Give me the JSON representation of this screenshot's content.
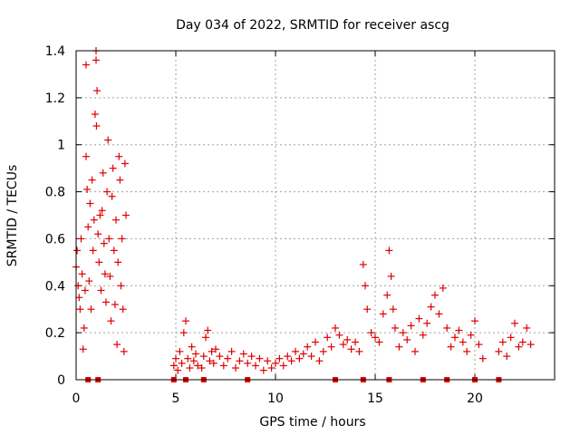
{
  "chart_data": {
    "type": "scatter",
    "title": "Day 034 of 2022, SRMTID for receiver ascg",
    "xlabel": "GPS time / hours",
    "ylabel": "SRMTID / TECUs",
    "xlim": [
      0,
      24
    ],
    "ylim": [
      0,
      1.4
    ],
    "xticks": [
      0,
      5,
      10,
      15,
      20
    ],
    "xtick_labels": [
      "0",
      "5",
      "10",
      "15",
      "20"
    ],
    "yticks": [
      0,
      0.2,
      0.4,
      0.6,
      0.8,
      1.0,
      1.2,
      1.4
    ],
    "ytick_labels": [
      "0",
      "0.2",
      "0.4",
      "0.6",
      "0.8",
      "1",
      "1.2",
      "1.4"
    ],
    "grid": true,
    "marker": "plus",
    "color": "#e00000",
    "series": [
      {
        "name": "SRMTID",
        "points": [
          [
            0.0,
            0.48
          ],
          [
            0.05,
            0.55
          ],
          [
            0.1,
            0.4
          ],
          [
            0.15,
            0.35
          ],
          [
            0.2,
            0.3
          ],
          [
            0.25,
            0.6
          ],
          [
            0.3,
            0.45
          ],
          [
            0.35,
            0.13
          ],
          [
            0.4,
            0.22
          ],
          [
            0.45,
            0.38
          ],
          [
            0.5,
            0.95
          ],
          [
            0.5,
            1.34
          ],
          [
            0.55,
            0.81
          ],
          [
            0.6,
            0.65
          ],
          [
            0.65,
            0.42
          ],
          [
            0.7,
            0.75
          ],
          [
            0.75,
            0.3
          ],
          [
            0.8,
            0.85
          ],
          [
            0.85,
            0.55
          ],
          [
            0.9,
            0.68
          ],
          [
            0.95,
            1.13
          ],
          [
            1.0,
            1.4
          ],
          [
            1.0,
            1.36
          ],
          [
            1.02,
            1.08
          ],
          [
            1.05,
            1.23
          ],
          [
            1.1,
            0.62
          ],
          [
            1.15,
            0.5
          ],
          [
            1.2,
            0.7
          ],
          [
            1.25,
            0.38
          ],
          [
            1.3,
            0.72
          ],
          [
            1.35,
            0.88
          ],
          [
            1.4,
            0.58
          ],
          [
            1.45,
            0.45
          ],
          [
            1.5,
            0.33
          ],
          [
            1.55,
            0.8
          ],
          [
            1.6,
            1.02
          ],
          [
            1.65,
            0.6
          ],
          [
            1.7,
            0.44
          ],
          [
            1.75,
            0.25
          ],
          [
            1.8,
            0.78
          ],
          [
            1.85,
            0.9
          ],
          [
            1.9,
            0.55
          ],
          [
            1.95,
            0.32
          ],
          [
            2.0,
            0.68
          ],
          [
            2.05,
            0.15
          ],
          [
            2.1,
            0.5
          ],
          [
            2.15,
            0.95
          ],
          [
            2.2,
            0.85
          ],
          [
            2.25,
            0.4
          ],
          [
            2.3,
            0.6
          ],
          [
            2.35,
            0.3
          ],
          [
            2.4,
            0.12
          ],
          [
            2.45,
            0.92
          ],
          [
            2.5,
            0.7
          ],
          [
            4.9,
            0.06
          ],
          [
            5.0,
            0.09
          ],
          [
            5.1,
            0.04
          ],
          [
            5.2,
            0.12
          ],
          [
            5.3,
            0.07
          ],
          [
            5.4,
            0.2
          ],
          [
            5.5,
            0.25
          ],
          [
            5.6,
            0.09
          ],
          [
            5.7,
            0.05
          ],
          [
            5.8,
            0.14
          ],
          [
            5.9,
            0.08
          ],
          [
            6.0,
            0.11
          ],
          [
            6.1,
            0.06
          ],
          [
            6.3,
            0.05
          ],
          [
            6.4,
            0.1
          ],
          [
            6.5,
            0.18
          ],
          [
            6.6,
            0.21
          ],
          [
            6.7,
            0.08
          ],
          [
            6.8,
            0.12
          ],
          [
            6.9,
            0.07
          ],
          [
            7.0,
            0.13
          ],
          [
            7.2,
            0.1
          ],
          [
            7.4,
            0.06
          ],
          [
            7.6,
            0.09
          ],
          [
            7.8,
            0.12
          ],
          [
            8.0,
            0.05
          ],
          [
            8.2,
            0.08
          ],
          [
            8.4,
            0.11
          ],
          [
            8.6,
            0.07
          ],
          [
            8.8,
            0.1
          ],
          [
            9.0,
            0.06
          ],
          [
            9.2,
            0.09
          ],
          [
            9.4,
            0.04
          ],
          [
            9.6,
            0.08
          ],
          [
            9.8,
            0.05
          ],
          [
            10.0,
            0.07
          ],
          [
            10.2,
            0.09
          ],
          [
            10.4,
            0.06
          ],
          [
            10.6,
            0.1
          ],
          [
            10.8,
            0.08
          ],
          [
            11.0,
            0.12
          ],
          [
            11.2,
            0.09
          ],
          [
            11.4,
            0.11
          ],
          [
            11.6,
            0.14
          ],
          [
            11.8,
            0.1
          ],
          [
            12.0,
            0.16
          ],
          [
            12.2,
            0.08
          ],
          [
            12.4,
            0.12
          ],
          [
            12.6,
            0.18
          ],
          [
            12.8,
            0.14
          ],
          [
            13.0,
            0.22
          ],
          [
            13.2,
            0.19
          ],
          [
            13.4,
            0.15
          ],
          [
            13.6,
            0.17
          ],
          [
            13.8,
            0.13
          ],
          [
            14.0,
            0.16
          ],
          [
            14.2,
            0.12
          ],
          [
            14.4,
            0.49
          ],
          [
            14.5,
            0.4
          ],
          [
            14.6,
            0.3
          ],
          [
            14.8,
            0.2
          ],
          [
            15.0,
            0.18
          ],
          [
            15.2,
            0.16
          ],
          [
            15.4,
            0.28
          ],
          [
            15.6,
            0.36
          ],
          [
            15.7,
            0.55
          ],
          [
            15.8,
            0.44
          ],
          [
            15.9,
            0.3
          ],
          [
            16.0,
            0.22
          ],
          [
            16.2,
            0.14
          ],
          [
            16.4,
            0.2
          ],
          [
            16.6,
            0.17
          ],
          [
            16.8,
            0.23
          ],
          [
            17.0,
            0.12
          ],
          [
            17.2,
            0.26
          ],
          [
            17.4,
            0.19
          ],
          [
            17.6,
            0.24
          ],
          [
            17.8,
            0.31
          ],
          [
            18.0,
            0.36
          ],
          [
            18.2,
            0.28
          ],
          [
            18.4,
            0.39
          ],
          [
            18.6,
            0.22
          ],
          [
            18.8,
            0.14
          ],
          [
            19.0,
            0.18
          ],
          [
            19.2,
            0.21
          ],
          [
            19.4,
            0.16
          ],
          [
            19.6,
            0.12
          ],
          [
            19.8,
            0.19
          ],
          [
            20.0,
            0.25
          ],
          [
            20.2,
            0.15
          ],
          [
            20.4,
            0.09
          ],
          [
            21.2,
            0.12
          ],
          [
            21.4,
            0.16
          ],
          [
            21.6,
            0.1
          ],
          [
            21.8,
            0.18
          ],
          [
            22.0,
            0.24
          ],
          [
            22.2,
            0.14
          ],
          [
            22.4,
            0.16
          ],
          [
            22.6,
            0.22
          ],
          [
            22.8,
            0.15
          ]
        ]
      }
    ],
    "axis_markers_x": [
      0.6,
      1.1,
      4.9,
      5.5,
      6.4,
      8.6,
      13.0,
      14.4,
      15.7,
      17.4,
      18.6,
      20.0,
      21.2
    ]
  }
}
